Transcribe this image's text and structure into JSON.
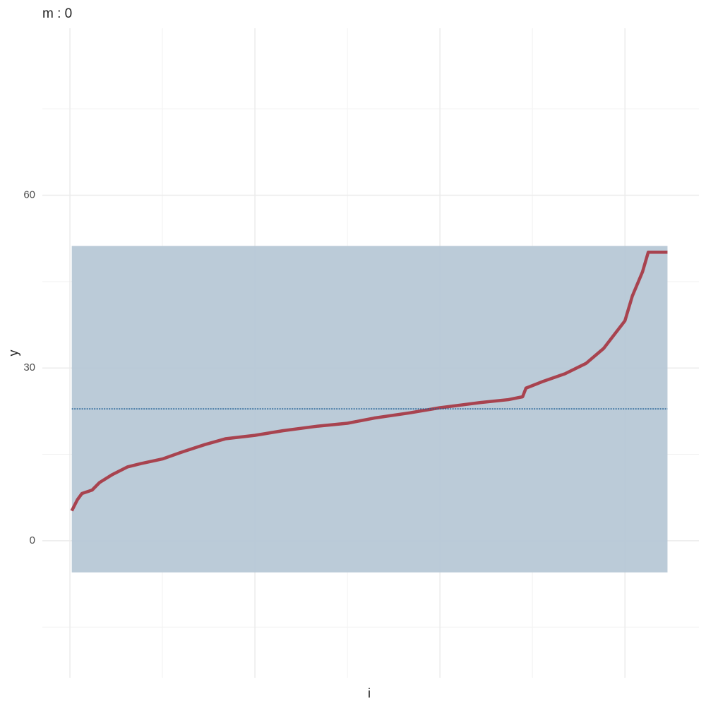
{
  "chart_data": {
    "type": "line",
    "title": "m : 0",
    "x_label": "i",
    "y_label": "y",
    "x": [
      1,
      4,
      6.5,
      12,
      16,
      23,
      31,
      38.5,
      50,
      61.5,
      73,
      84,
      100,
      115,
      134,
      150,
      164.5,
      183.6,
      200,
      222,
      237,
      244.7,
      246.5,
      256,
      267.6,
      279,
      288.5,
      294,
      300,
      304,
      309.5,
      312.6,
      323
    ],
    "series": [
      {
        "color": "#a8434f",
        "values": [
          5.2,
          7.1,
          8.2,
          8.8,
          10.1,
          11.5,
          12.8,
          13.4,
          14.2,
          15.5,
          16.7,
          17.7,
          18.3,
          19.1,
          19.9,
          20.4,
          21.3,
          22.2,
          23.1,
          24.0,
          24.5,
          25.0,
          26.5,
          27.7,
          29.0,
          30.8,
          33.4,
          35.7,
          38.2,
          42.5,
          46.7,
          50.1,
          50.1
        ]
      }
    ],
    "band": {
      "ymin": -5.5,
      "ymax": 51.2,
      "color": "#b7c8d6"
    },
    "hline": {
      "value": 22.9,
      "color": "#1f5f95"
    },
    "xlim": [
      -14.9,
      340
    ],
    "ylim": [
      -23.8,
      89
    ],
    "xticks": [
      0,
      50,
      100,
      150,
      200,
      250,
      300
    ],
    "yticks": [
      0,
      30,
      60
    ],
    "grid": true
  }
}
